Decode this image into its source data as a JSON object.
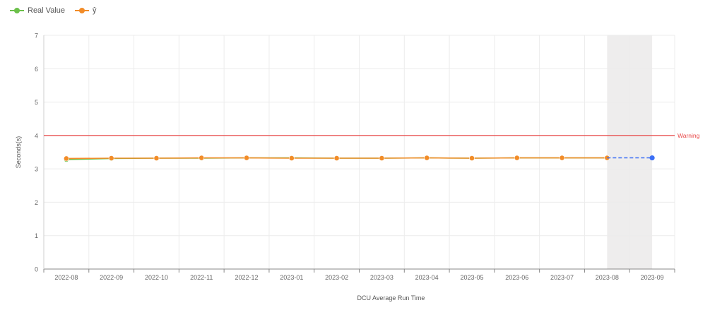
{
  "legend": {
    "items": [
      {
        "label": "Real Value",
        "color": "#6cc04a"
      },
      {
        "label": "ŷ",
        "color": "#f28c28"
      }
    ]
  },
  "colors": {
    "forecast": "#3b6ff5",
    "warning": "#e84545",
    "shade": "#eeeded",
    "grid": "#ececec",
    "axis": "#888888",
    "tick_text": "#666666"
  },
  "chart_data": {
    "type": "line",
    "title": "",
    "xlabel": "DCU Average Run Time",
    "ylabel": "Seconds(s)",
    "categories": [
      "2022-08",
      "2022-09",
      "2022-10",
      "2022-11",
      "2022-12",
      "2023-01",
      "2023-02",
      "2023-03",
      "2023-04",
      "2023-05",
      "2023-06",
      "2023-07",
      "2023-08",
      "2023-09"
    ],
    "ylim": [
      0,
      7
    ],
    "yticks": [
      0,
      1,
      2,
      3,
      4,
      5,
      6,
      7
    ],
    "grid": true,
    "legend_position": "top-left",
    "series": [
      {
        "name": "Real Value",
        "color": "#6cc04a",
        "values": [
          3.28,
          3.31,
          3.32,
          3.32,
          3.33,
          3.33,
          3.32,
          3.32,
          3.33,
          3.32,
          3.33,
          3.33,
          3.33,
          null
        ]
      },
      {
        "name": "ŷ",
        "color": "#f28c28",
        "values": [
          3.31,
          3.32,
          3.32,
          3.33,
          3.33,
          3.32,
          3.32,
          3.32,
          3.33,
          3.32,
          3.33,
          3.33,
          3.33,
          null
        ]
      }
    ],
    "forecast": {
      "from": "2023-08",
      "to": "2023-09",
      "values": [
        3.33,
        3.33
      ]
    },
    "highlight_range": [
      "2023-08",
      "2023-09"
    ],
    "reference_lines": [
      {
        "label": "Warning",
        "value": 4
      }
    ]
  }
}
